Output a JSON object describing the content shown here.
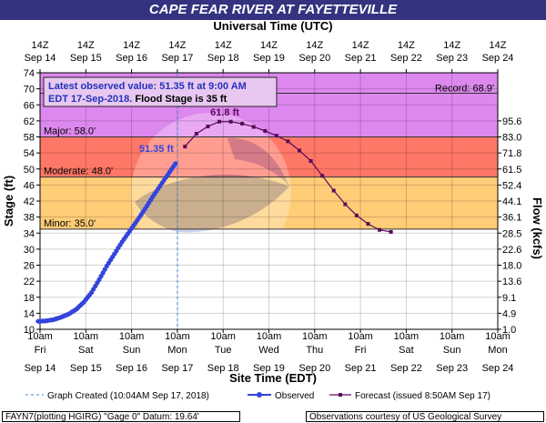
{
  "title": "CAPE FEAR RIVER AT FAYETTEVILLE",
  "top_axis_label": "Universal Time (UTC)",
  "top_ticks": [
    {
      "l1": "14Z",
      "l2": "Sep 14"
    },
    {
      "l1": "14Z",
      "l2": "Sep 15"
    },
    {
      "l1": "14Z",
      "l2": "Sep 16"
    },
    {
      "l1": "14Z",
      "l2": "Sep 17"
    },
    {
      "l1": "14Z",
      "l2": "Sep 18"
    },
    {
      "l1": "14Z",
      "l2": "Sep 19"
    },
    {
      "l1": "14Z",
      "l2": "Sep 20"
    },
    {
      "l1": "14Z",
      "l2": "Sep 21"
    },
    {
      "l1": "14Z",
      "l2": "Sep 22"
    },
    {
      "l1": "14Z",
      "l2": "Sep 23"
    },
    {
      "l1": "14Z",
      "l2": "Sep 24"
    }
  ],
  "bottom_ticks": [
    {
      "l1": "10am",
      "l2": "Fri",
      "l3": "Sep 14"
    },
    {
      "l1": "10am",
      "l2": "Sat",
      "l3": "Sep 15"
    },
    {
      "l1": "10am",
      "l2": "Sun",
      "l3": "Sep 16"
    },
    {
      "l1": "10am",
      "l2": "Mon",
      "l3": "Sep 17"
    },
    {
      "l1": "10am",
      "l2": "Tue",
      "l3": "Sep 18"
    },
    {
      "l1": "10am",
      "l2": "Wed",
      "l3": "Sep 19"
    },
    {
      "l1": "10am",
      "l2": "Thu",
      "l3": "Sep 20"
    },
    {
      "l1": "10am",
      "l2": "Fri",
      "l3": "Sep 21"
    },
    {
      "l1": "10am",
      "l2": "Sat",
      "l3": "Sep 22"
    },
    {
      "l1": "10am",
      "l2": "Sun",
      "l3": "Sep 23"
    },
    {
      "l1": "10am",
      "l2": "Mon",
      "l3": "Sep 24"
    }
  ],
  "info_box": {
    "line1": "Latest observed value: 51.35 ft at 9:00 AM",
    "line2a": "EDT 17-Sep-2018.",
    "line2b": " Flood Stage is 35 ft"
  },
  "zone_labels": {
    "record": "Record: 68.9'",
    "major": "Major: 58.0'",
    "moderate": "Moderate: 48.0'",
    "minor": "Minor: 35.0'"
  },
  "callouts": {
    "latest": "51.35 ft",
    "peak": "61.8 ft"
  },
  "legend": {
    "created": "Graph Created (10:04AM Sep 17, 2018)",
    "observed": "Observed",
    "forecast": "Forecast (issued 8:50AM Sep 17)"
  },
  "footer": {
    "left": "FAYN7(plotting HGIRG) \"Gage 0\" Datum: 19.64'",
    "right": "Observations courtesy of US Geological Survey"
  },
  "colors": {
    "title_bg": "#33337f",
    "observed": "#3344dd",
    "forecast": "#5a0a5a",
    "record_zone": "#dd88ee",
    "major_zone": "#e79ae8",
    "moderate_zone": "#ff7766",
    "minor_zone": "#ffcc77",
    "graph_created_line": "#4488dd"
  },
  "chart_data": {
    "type": "line",
    "xlabel": "Site Time (EDT)",
    "ylabel": "Stage (ft)",
    "y2label": "Flow (kcfs)",
    "x_range": [
      "2018-09-14 10:00",
      "2018-09-24 10:00"
    ],
    "ylim": [
      10,
      74
    ],
    "y_ticks": [
      10,
      14,
      18,
      22,
      26,
      30,
      34,
      38,
      42,
      46,
      50,
      54,
      58,
      62,
      66,
      70,
      74
    ],
    "y2_ticks": [
      {
        "stage": 10,
        "label": "1.0"
      },
      {
        "stage": 14,
        "label": "4.9"
      },
      {
        "stage": 18,
        "label": "9.1"
      },
      {
        "stage": 22,
        "label": "13.6"
      },
      {
        "stage": 26,
        "label": "18.0"
      },
      {
        "stage": 30,
        "label": "22.6"
      },
      {
        "stage": 34,
        "label": "28.5"
      },
      {
        "stage": 38,
        "label": "36.1"
      },
      {
        "stage": 42,
        "label": "44.1"
      },
      {
        "stage": 46,
        "label": "52.4"
      },
      {
        "stage": 50,
        "label": "61.5"
      },
      {
        "stage": 54,
        "label": "71.8"
      },
      {
        "stage": 58,
        "label": "83.0"
      },
      {
        "stage": 62,
        "label": "95.6"
      }
    ],
    "thresholds": {
      "record": 68.9,
      "major": 58.0,
      "moderate": 48.0,
      "minor": 35.0
    },
    "grid": true,
    "graph_created": "2018-09-17 10:04",
    "series": [
      {
        "name": "Observed",
        "points": [
          [
            "2018-09-14 09:00",
            12.0
          ],
          [
            "2018-09-14 13:00",
            12.1
          ],
          [
            "2018-09-14 17:00",
            12.4
          ],
          [
            "2018-09-14 21:00",
            13.0
          ],
          [
            "2018-09-15 01:00",
            13.8
          ],
          [
            "2018-09-15 05:00",
            15.0
          ],
          [
            "2018-09-15 09:00",
            16.8
          ],
          [
            "2018-09-15 13:00",
            19.2
          ],
          [
            "2018-09-15 17:00",
            22.4
          ],
          [
            "2018-09-15 21:00",
            25.8
          ],
          [
            "2018-09-16 01:00",
            28.8
          ],
          [
            "2018-09-16 05:00",
            31.8
          ],
          [
            "2018-09-16 09:00",
            34.5
          ],
          [
            "2018-09-16 13:00",
            37.2
          ],
          [
            "2018-09-16 17:00",
            40.0
          ],
          [
            "2018-09-16 21:00",
            43.0
          ],
          [
            "2018-09-17 01:00",
            45.8
          ],
          [
            "2018-09-17 05:00",
            48.6
          ],
          [
            "2018-09-17 09:00",
            51.35
          ]
        ]
      },
      {
        "name": "Forecast",
        "points": [
          [
            "2018-09-17 14:00",
            55.6
          ],
          [
            "2018-09-17 20:00",
            58.8
          ],
          [
            "2018-09-18 02:00",
            60.6
          ],
          [
            "2018-09-18 08:00",
            61.8
          ],
          [
            "2018-09-18 14:00",
            61.8
          ],
          [
            "2018-09-18 20:00",
            61.3
          ],
          [
            "2018-09-19 02:00",
            60.5
          ],
          [
            "2018-09-19 08:00",
            59.5
          ],
          [
            "2018-09-19 14:00",
            58.3
          ],
          [
            "2018-09-19 20:00",
            56.9
          ],
          [
            "2018-09-20 02:00",
            54.6
          ],
          [
            "2018-09-20 08:00",
            52.0
          ],
          [
            "2018-09-20 14:00",
            48.3
          ],
          [
            "2018-09-20 20:00",
            44.6
          ],
          [
            "2018-09-21 02:00",
            41.2
          ],
          [
            "2018-09-21 08:00",
            38.4
          ],
          [
            "2018-09-21 14:00",
            36.3
          ],
          [
            "2018-09-21 20:00",
            34.8
          ],
          [
            "2018-09-22 02:00",
            34.3
          ]
        ]
      }
    ]
  }
}
